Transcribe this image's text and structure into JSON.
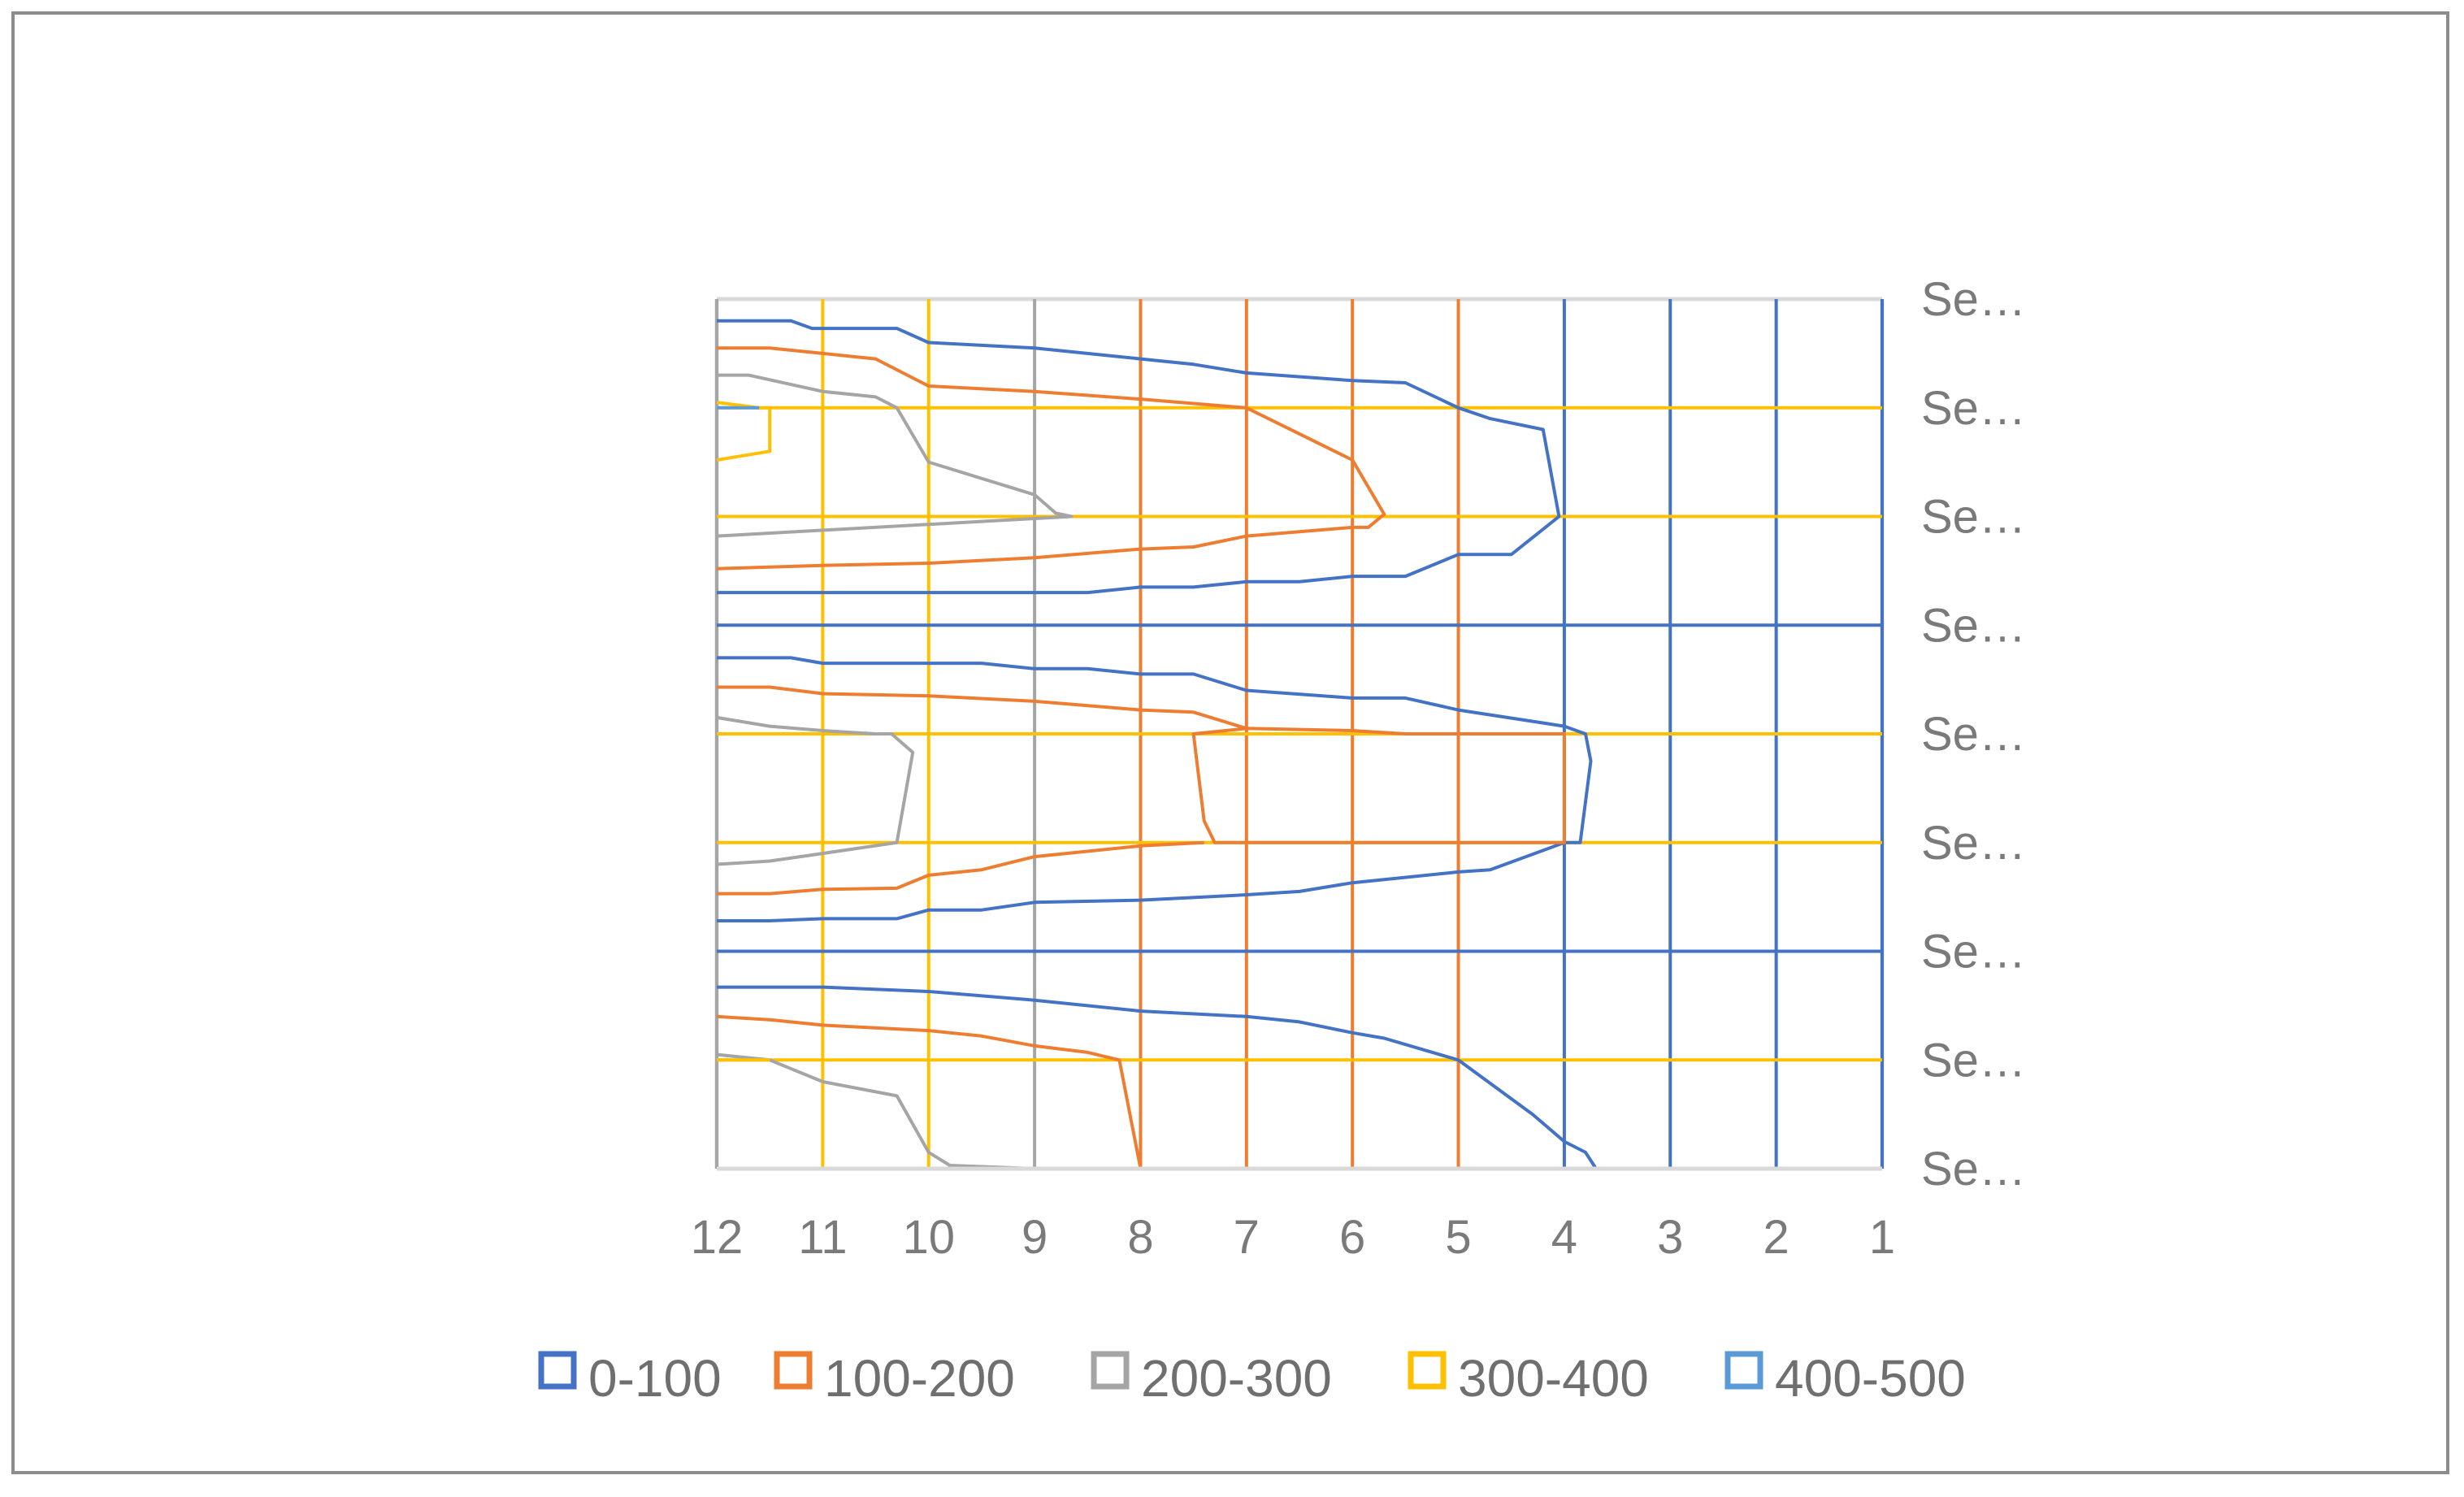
{
  "chart_data": {
    "type": "contour",
    "title": "",
    "xlabel": "",
    "ylabel": "",
    "x_categories": [
      "12",
      "11",
      "10",
      "9",
      "8",
      "7",
      "6",
      "5",
      "4",
      "3",
      "2",
      "1"
    ],
    "y_categories": [
      "Se…",
      "Se…",
      "Se…",
      "Se…",
      "Se…",
      "Se…",
      "Se…",
      "Se…",
      "Se…"
    ],
    "grid": true,
    "legend_position": "bottom",
    "legend": [
      {
        "name": "0-100",
        "color": "#4472c4"
      },
      {
        "name": "100-200",
        "color": "#ed7d31"
      },
      {
        "name": "200-300",
        "color": "#a5a5a5"
      },
      {
        "name": "300-400",
        "color": "#ffc000"
      },
      {
        "name": "400-500",
        "color": "#5b9bd5"
      }
    ],
    "gridlines": {
      "vertical_colors": [
        "#a5a5a5",
        "#ffc000",
        "#ffc000",
        "#a5a5a5",
        "#ed7d31",
        "#ed7d31",
        "#ed7d31",
        "#ed7d31",
        "#4472c4",
        "#4472c4",
        "#4472c4",
        "#4472c4"
      ],
      "horizontal_colors": [
        "#4472c4",
        "#ffc000",
        "#ffc000",
        "#4472c4",
        "#ffc000",
        "#ffc000",
        "#4472c4",
        "#ffc000",
        "#ffc000"
      ]
    },
    "contours": [
      {
        "band": "0-100",
        "color": "#4472c4",
        "points": [
          [
            12,
            0.2
          ],
          [
            11.3,
            0.2
          ],
          [
            11.1,
            0.27
          ],
          [
            10.3,
            0.27
          ],
          [
            10.0,
            0.4
          ],
          [
            9.0,
            0.45
          ],
          [
            8.0,
            0.55
          ],
          [
            7.5,
            0.6
          ],
          [
            7.0,
            0.68
          ],
          [
            6.0,
            0.75
          ],
          [
            5.5,
            0.77
          ],
          [
            5.0,
            1.0
          ],
          [
            4.7,
            1.1
          ],
          [
            4.2,
            1.2
          ],
          [
            4.05,
            2.0
          ],
          [
            4.5,
            2.35
          ],
          [
            5.0,
            2.35
          ],
          [
            5.5,
            2.55
          ],
          [
            6.0,
            2.55
          ],
          [
            6.5,
            2.6
          ],
          [
            7.0,
            2.6
          ],
          [
            7.5,
            2.65
          ],
          [
            8.0,
            2.65
          ],
          [
            8.5,
            2.7
          ],
          [
            9.0,
            2.7
          ],
          [
            10.0,
            2.7
          ],
          [
            11.0,
            2.7
          ],
          [
            12.0,
            2.7
          ]
        ]
      },
      {
        "band": "0-100",
        "color": "#4472c4",
        "points": [
          [
            12,
            3.3
          ],
          [
            11.3,
            3.3
          ],
          [
            11.0,
            3.35
          ],
          [
            10.0,
            3.35
          ],
          [
            9.5,
            3.35
          ],
          [
            9.0,
            3.4
          ],
          [
            8.5,
            3.4
          ],
          [
            8.0,
            3.45
          ],
          [
            7.5,
            3.45
          ],
          [
            7.0,
            3.6
          ],
          [
            6.0,
            3.67
          ],
          [
            5.5,
            3.67
          ],
          [
            5.0,
            3.78
          ],
          [
            4.0,
            3.93
          ],
          [
            3.8,
            4.0
          ],
          [
            3.75,
            4.25
          ],
          [
            3.85,
            5.0
          ],
          [
            4.0,
            5.0
          ],
          [
            4.7,
            5.25
          ],
          [
            5.0,
            5.27
          ],
          [
            6.0,
            5.37
          ],
          [
            6.5,
            5.45
          ],
          [
            7.0,
            5.48
          ],
          [
            8.0,
            5.53
          ],
          [
            9.0,
            5.55
          ],
          [
            9.5,
            5.62
          ],
          [
            10.0,
            5.62
          ],
          [
            10.3,
            5.7
          ],
          [
            11.0,
            5.7
          ],
          [
            11.5,
            5.72
          ],
          [
            12,
            5.72
          ]
        ]
      },
      {
        "band": "0-100",
        "color": "#4472c4",
        "points": [
          [
            12,
            6.33
          ],
          [
            11.0,
            6.33
          ],
          [
            10.0,
            6.37
          ],
          [
            9.0,
            6.45
          ],
          [
            8.0,
            6.55
          ],
          [
            7.0,
            6.6
          ],
          [
            6.5,
            6.65
          ],
          [
            6.0,
            6.75
          ],
          [
            5.7,
            6.8
          ],
          [
            5.0,
            7.0
          ],
          [
            4.3,
            7.5
          ],
          [
            4.0,
            7.75
          ],
          [
            3.8,
            7.85
          ],
          [
            3.7,
            8.0
          ],
          [
            1.0,
            8.0
          ]
        ]
      },
      {
        "band": "100-200",
        "color": "#ed7d31",
        "points": [
          [
            12,
            0.45
          ],
          [
            11.5,
            0.45
          ],
          [
            11.0,
            0.5
          ],
          [
            10.5,
            0.55
          ],
          [
            10.0,
            0.8
          ],
          [
            9.0,
            0.85
          ],
          [
            8.0,
            0.92
          ],
          [
            7.0,
            1.0
          ],
          [
            6.0,
            1.48
          ],
          [
            5.7,
            1.98
          ],
          [
            5.85,
            2.1
          ],
          [
            6.0,
            2.1
          ],
          [
            7.0,
            2.18
          ],
          [
            7.5,
            2.28
          ],
          [
            8.0,
            2.3
          ],
          [
            9.0,
            2.38
          ],
          [
            10.0,
            2.43
          ],
          [
            11.0,
            2.45
          ],
          [
            12.0,
            2.48
          ]
        ]
      },
      {
        "band": "100-200",
        "color": "#ed7d31",
        "points": [
          [
            12,
            3.57
          ],
          [
            11.5,
            3.57
          ],
          [
            11.0,
            3.63
          ],
          [
            10.0,
            3.65
          ],
          [
            9.0,
            3.7
          ],
          [
            8.0,
            3.78
          ],
          [
            7.5,
            3.8
          ],
          [
            7.0,
            3.95
          ],
          [
            6.0,
            3.97
          ],
          [
            5.5,
            4.0
          ],
          [
            4.0,
            4.0
          ],
          [
            4.0,
            5.0
          ],
          [
            7.3,
            5.0
          ],
          [
            7.4,
            4.8
          ],
          [
            7.5,
            4.0
          ],
          [
            7.0,
            3.95
          ]
        ]
      },
      {
        "band": "100-200",
        "color": "#ed7d31",
        "points": [
          [
            7.4,
            5.0
          ],
          [
            8.0,
            5.03
          ],
          [
            9.0,
            5.13
          ],
          [
            9.5,
            5.25
          ],
          [
            10.0,
            5.3
          ],
          [
            10.3,
            5.42
          ],
          [
            11.0,
            5.43
          ],
          [
            11.5,
            5.47
          ],
          [
            12.0,
            5.47
          ]
        ]
      },
      {
        "band": "100-200",
        "color": "#ed7d31",
        "points": [
          [
            12,
            6.6
          ],
          [
            11.5,
            6.63
          ],
          [
            11.0,
            6.68
          ],
          [
            10.0,
            6.73
          ],
          [
            9.5,
            6.78
          ],
          [
            9.0,
            6.87
          ],
          [
            8.5,
            6.93
          ],
          [
            8.2,
            7.0
          ],
          [
            8.1,
            7.5
          ],
          [
            8.0,
            8.0
          ],
          [
            4.0,
            8.0
          ]
        ]
      },
      {
        "band": "200-300",
        "color": "#a5a5a5",
        "points": [
          [
            12,
            0.7
          ],
          [
            11.7,
            0.7
          ],
          [
            11.0,
            0.85
          ],
          [
            10.5,
            0.9
          ],
          [
            10.3,
            1.0
          ],
          [
            10.0,
            1.5
          ],
          [
            9.0,
            1.8
          ],
          [
            8.8,
            1.97
          ],
          [
            8.65,
            2.0
          ],
          [
            12.0,
            2.18
          ]
        ]
      },
      {
        "band": "200-300",
        "color": "#a5a5a5",
        "points": [
          [
            12,
            3.85
          ],
          [
            11.5,
            3.93
          ],
          [
            11.0,
            3.97
          ],
          [
            10.5,
            4.0
          ],
          [
            10.35,
            4.0
          ],
          [
            10.15,
            4.17
          ],
          [
            10.3,
            5.0
          ],
          [
            11.0,
            5.1
          ],
          [
            11.5,
            5.17
          ],
          [
            12.0,
            5.2
          ]
        ]
      },
      {
        "band": "200-300",
        "color": "#a5a5a5",
        "points": [
          [
            12,
            6.95
          ],
          [
            11.5,
            7.0
          ],
          [
            11.0,
            7.2
          ],
          [
            10.3,
            7.33
          ],
          [
            10.0,
            7.85
          ],
          [
            9.8,
            7.97
          ],
          [
            9.0,
            8.0
          ],
          [
            8.0,
            8.0
          ]
        ]
      },
      {
        "band": "300-400",
        "color": "#ffc000",
        "points": [
          [
            12,
            0.95
          ],
          [
            11.6,
            1.0
          ],
          [
            11.5,
            1.0
          ],
          [
            11.5,
            1.4
          ],
          [
            12.0,
            1.48
          ]
        ]
      },
      {
        "band": "300-400",
        "color": "#ffc000",
        "points": [
          [
            12,
            7.0
          ],
          [
            11.5,
            7.0
          ]
        ]
      },
      {
        "band": "300-400",
        "color": "#ffc000",
        "points": [
          [
            12,
            8.0
          ],
          [
            9.8,
            8.0
          ]
        ]
      },
      {
        "band": "400-500",
        "color": "#5b9bd5",
        "points": [
          [
            12,
            1.0
          ],
          [
            11.6,
            1.0
          ]
        ]
      }
    ]
  }
}
